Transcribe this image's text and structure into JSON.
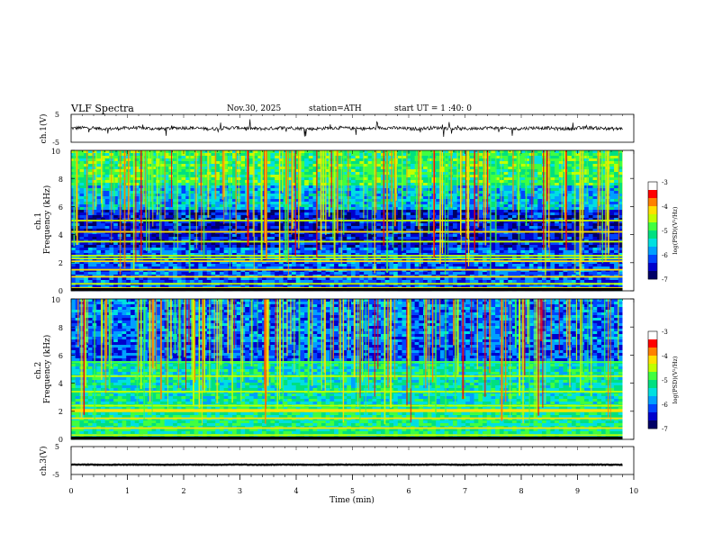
{
  "header": {
    "title": "VLF  Spectra",
    "date": "Nov.30, 2025",
    "station": "station=ATH",
    "start": "start  UT  =   1 :40: 0"
  },
  "chart_data": [
    {
      "type": "line",
      "name": "ch1-waveform",
      "ylabel": "ch.1(V)",
      "ylim": [
        -5,
        5
      ],
      "yticks": [
        "5",
        "-5"
      ],
      "xlim": [
        0,
        10
      ],
      "baseline": 0,
      "color": "#000000"
    },
    {
      "type": "heatmap",
      "name": "ch1-spectrogram",
      "ylabel": "ch.1\nFrequency (kHz)",
      "ylim": [
        0,
        10
      ],
      "yticks": [
        "0",
        "2",
        "4",
        "6",
        "8",
        "10"
      ],
      "xlim": [
        0,
        9.8
      ],
      "colorbar": {
        "label": "log(PSD)(V²/Hz)",
        "range": [
          -7,
          -3
        ],
        "ticks": [
          "-3",
          "-4",
          "-5",
          "-6",
          "-7"
        ]
      },
      "bands_khz": [
        0.2,
        0.5,
        1.0,
        1.5,
        2.1,
        2.3,
        2.5,
        3.5,
        4.2,
        5.0
      ]
    },
    {
      "type": "heatmap",
      "name": "ch2-spectrogram",
      "ylabel": "ch.2\nFrequency (kHz)",
      "ylim": [
        0,
        10
      ],
      "yticks": [
        "0",
        "2",
        "4",
        "6",
        "8",
        "10"
      ],
      "xlim": [
        0,
        9.8
      ],
      "colorbar": {
        "label": "log(PSD)(V²/Hz)",
        "range": [
          -7,
          -3
        ],
        "ticks": [
          "-3",
          "-4",
          "-5",
          "-6",
          "-7"
        ]
      },
      "bands_khz": [
        0.3,
        0.8,
        1.5,
        2.0,
        2.1,
        2.4,
        3.4,
        4.5,
        5.5
      ]
    },
    {
      "type": "line",
      "name": "ch3-waveform",
      "ylabel": "ch.3(V)",
      "ylim": [
        -5,
        5
      ],
      "yticks": [
        "5",
        "-5"
      ],
      "xlim": [
        0,
        10
      ],
      "baseline": -1.5,
      "color": "#000000"
    }
  ],
  "xaxis": {
    "label": "Time  (min)",
    "ticks": [
      "0",
      "1",
      "2",
      "3",
      "4",
      "5",
      "6",
      "7",
      "8",
      "9",
      "10"
    ],
    "range": [
      0,
      10
    ]
  },
  "colormap": [
    "#000066",
    "#0000cc",
    "#0044ff",
    "#00a0ff",
    "#00e0e0",
    "#00e080",
    "#40ff40",
    "#c0ff00",
    "#ffe000",
    "#ff8000",
    "#ff0000",
    "#ffffff"
  ]
}
